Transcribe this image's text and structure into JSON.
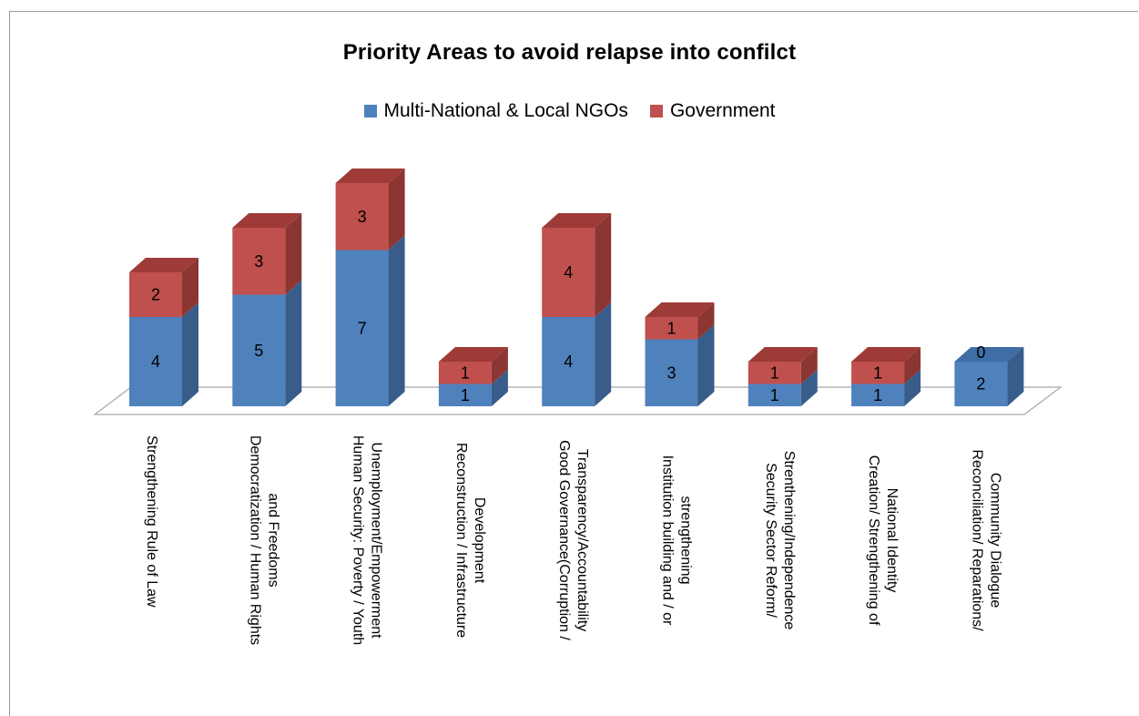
{
  "chart_data": {
    "type": "bar",
    "stacked": true,
    "style": "3d",
    "title": "Priority Areas to avoid relapse into confilct",
    "legend_position": "top",
    "categories": [
      [
        "Strengthening Rule of Law"
      ],
      [
        "Democratization / Human Rights",
        "and Freedoms"
      ],
      [
        "Human Security: Poverty / Youth",
        "Unemployment/Empowerment"
      ],
      [
        "Reconstruction / Infrastructure",
        "Development"
      ],
      [
        "Good Governance(Corruption /",
        "Transparency/Accountability"
      ],
      [
        "Institution building and / or",
        "strengthening"
      ],
      [
        "Security Sector Reform/",
        "Strenthening/Independence"
      ],
      [
        "Creation/ Strengthening of",
        "National Identity"
      ],
      [
        "Reconciliation/ Reparations/",
        "Community Dialogue"
      ]
    ],
    "series": [
      {
        "name": "Multi-National & Local NGOs",
        "color": "#4f81bd",
        "side_color": "#385d8a",
        "top_color": "#3f6ea6",
        "values": [
          4,
          5,
          7,
          1,
          4,
          3,
          1,
          1,
          2
        ]
      },
      {
        "name": "Government",
        "color": "#c0504d",
        "side_color": "#8c3633",
        "top_color": "#9e3b38",
        "values": [
          2,
          3,
          3,
          1,
          4,
          1,
          1,
          1,
          0
        ]
      }
    ],
    "grid": false
  }
}
